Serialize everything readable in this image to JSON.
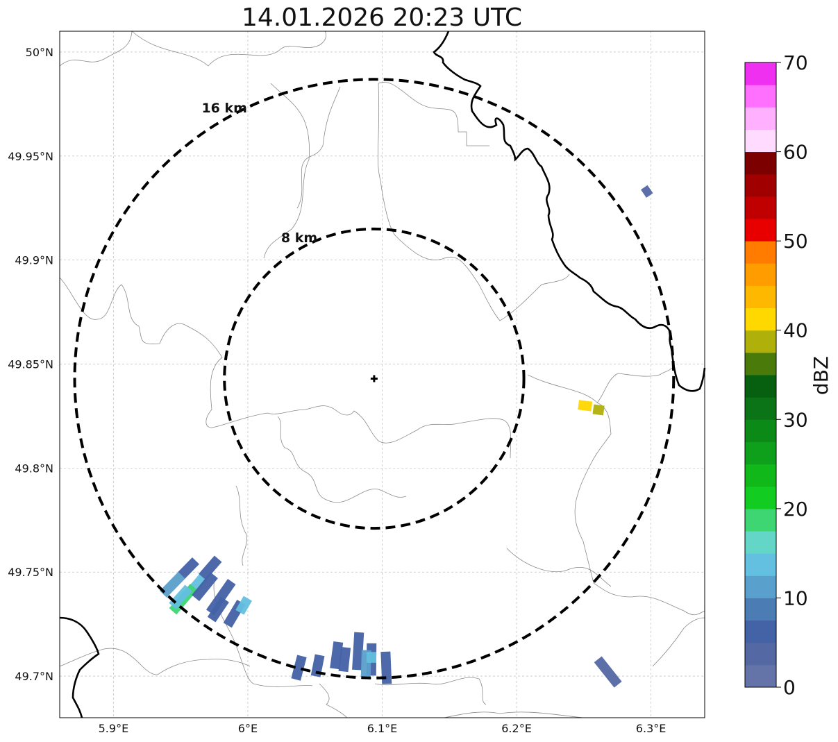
{
  "map": {
    "title": "14.01.2026 20:23 UTC",
    "lon_range": [
      5.86,
      6.34
    ],
    "lat_range": [
      49.68,
      50.01
    ],
    "x_ticks": [
      {
        "value": 5.9,
        "label": "5.9°E"
      },
      {
        "value": 6.0,
        "label": "6°E"
      },
      {
        "value": 6.1,
        "label": "6.1°E"
      },
      {
        "value": 6.2,
        "label": "6.2°E"
      },
      {
        "value": 6.3,
        "label": "6.3°E"
      }
    ],
    "y_ticks": [
      {
        "value": 50.0,
        "label": "50°N"
      },
      {
        "value": 49.95,
        "label": "49.95°N"
      },
      {
        "value": 49.9,
        "label": "49.9°N"
      },
      {
        "value": 49.85,
        "label": "49.85°N"
      },
      {
        "value": 49.8,
        "label": "49.8°N"
      },
      {
        "value": 49.75,
        "label": "49.75°N"
      },
      {
        "value": 49.7,
        "label": "49.7°N"
      }
    ],
    "radar_center": {
      "lon": 6.094,
      "lat": 49.843
    },
    "range_rings": [
      {
        "label": "8 km",
        "radius_km": 8
      },
      {
        "label": "16 km",
        "radius_km": 16
      }
    ]
  },
  "colorbar": {
    "label": "dBZ",
    "min": 0,
    "max": 70,
    "step": 2.5,
    "ticks": [
      {
        "value": 0,
        "label": "0"
      },
      {
        "value": 10,
        "label": "10"
      },
      {
        "value": 20,
        "label": "20"
      },
      {
        "value": 30,
        "label": "30"
      },
      {
        "value": 40,
        "label": "40"
      },
      {
        "value": 50,
        "label": "50"
      },
      {
        "value": 60,
        "label": "60"
      },
      {
        "value": 70,
        "label": "70"
      }
    ],
    "colors": [
      "#6474a8",
      "#5468a4",
      "#4462a6",
      "#4c7cb4",
      "#5aa0cc",
      "#64c0e0",
      "#64d6c8",
      "#3ed672",
      "#12cc22",
      "#10b81a",
      "#0ea01a",
      "#0c8a18",
      "#0a7416",
      "#066010",
      "#4a7a0a",
      "#b0b00a",
      "#ffd800",
      "#ffb800",
      "#ff9c00",
      "#ff7c00",
      "#e80000",
      "#c00000",
      "#a00000",
      "#7c0000",
      "#ffdcff",
      "#ffb0ff",
      "#ff70ff",
      "#f030f0"
    ]
  },
  "echoes": [
    {
      "lon": 5.944,
      "lat": 49.744,
      "dbz": 12,
      "len": 0.02
    },
    {
      "lon": 5.956,
      "lat": 49.752,
      "dbz": 5,
      "len": 0.015
    },
    {
      "lon": 5.972,
      "lat": 49.752,
      "dbz": 5,
      "len": 0.018
    },
    {
      "lon": 5.962,
      "lat": 49.744,
      "dbz": 14,
      "len": 0.014
    },
    {
      "lon": 5.952,
      "lat": 49.737,
      "dbz": 18,
      "len": 0.024
    },
    {
      "lon": 5.95,
      "lat": 49.738,
      "dbz": 14,
      "len": 0.018
    },
    {
      "lon": 5.968,
      "lat": 49.743,
      "dbz": 6,
      "len": 0.022
    },
    {
      "lon": 5.98,
      "lat": 49.738,
      "dbz": 7,
      "len": 0.028
    },
    {
      "lon": 5.978,
      "lat": 49.732,
      "dbz": 6,
      "len": 0.018
    },
    {
      "lon": 5.99,
      "lat": 49.73,
      "dbz": 6,
      "len": 0.02
    },
    {
      "lon": 5.997,
      "lat": 49.734,
      "dbz": 13,
      "len": 0.012
    },
    {
      "lon": 6.038,
      "lat": 49.704,
      "dbz": 5,
      "len": 0.018
    },
    {
      "lon": 6.052,
      "lat": 49.705,
      "dbz": 5,
      "len": 0.016
    },
    {
      "lon": 6.066,
      "lat": 49.71,
      "dbz": 6,
      "len": 0.02
    },
    {
      "lon": 6.072,
      "lat": 49.708,
      "dbz": 6,
      "len": 0.018
    },
    {
      "lon": 6.082,
      "lat": 49.712,
      "dbz": 7,
      "len": 0.028
    },
    {
      "lon": 6.092,
      "lat": 49.708,
      "dbz": 6,
      "len": 0.024
    },
    {
      "lon": 6.088,
      "lat": 49.706,
      "dbz": 11,
      "len": 0.02
    },
    {
      "lon": 6.103,
      "lat": 49.704,
      "dbz": 6,
      "len": 0.024
    },
    {
      "lon": 6.092,
      "lat": 49.709,
      "dbz": 14,
      "len": 0.008
    },
    {
      "lon": 6.268,
      "lat": 49.702,
      "dbz": 3,
      "len": 0.024
    },
    {
      "lon": 6.297,
      "lat": 49.933,
      "dbz": 3,
      "len": 0.006
    },
    {
      "lon": 6.251,
      "lat": 49.83,
      "dbz": 41,
      "len": 0.01
    },
    {
      "lon": 6.261,
      "lat": 49.828,
      "dbz": 38,
      "len": 0.008
    }
  ]
}
